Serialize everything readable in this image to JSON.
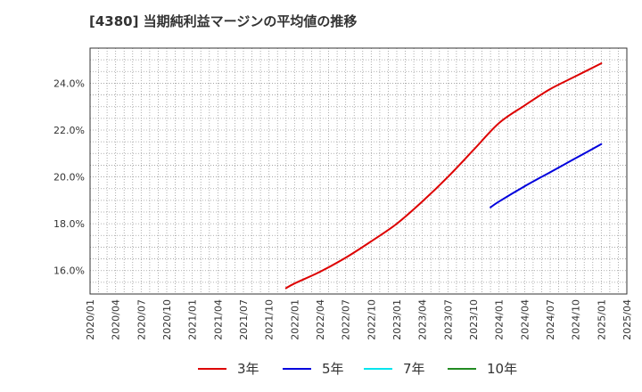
{
  "title": "[4380]  当期純利益マージンの平均値の推移",
  "chart_data": {
    "type": "line",
    "title": "[4380]  当期純利益マージンの平均値の推移",
    "xlabel": "",
    "ylabel": "",
    "ylim": [
      15.0,
      25.5
    ],
    "yticks": [
      16.0,
      18.0,
      20.0,
      22.0,
      24.0
    ],
    "ytick_labels": [
      "16.0%",
      "18.0%",
      "20.0%",
      "22.0%",
      "24.0%"
    ],
    "categories": [
      "2020/01",
      "2020/04",
      "2020/07",
      "2020/10",
      "2021/01",
      "2021/04",
      "2021/07",
      "2021/10",
      "2022/01",
      "2022/04",
      "2022/07",
      "2022/10",
      "2023/01",
      "2023/04",
      "2023/07",
      "2023/10",
      "2024/01",
      "2024/04",
      "2024/07",
      "2024/10",
      "2025/01",
      "2025/04"
    ],
    "grid": true,
    "legend_position": "bottom",
    "series": [
      {
        "name": "3年",
        "color": "#dd0000",
        "x": [
          "2021/12",
          "2022/01",
          "2022/04",
          "2022/07",
          "2022/10",
          "2023/01",
          "2023/04",
          "2023/07",
          "2023/10",
          "2024/01",
          "2024/04",
          "2024/07",
          "2024/10",
          "2025/01"
        ],
        "values": [
          15.25,
          15.45,
          15.95,
          16.55,
          17.25,
          18.0,
          18.95,
          20.0,
          21.15,
          22.3,
          23.05,
          23.75,
          24.3,
          24.85
        ]
      },
      {
        "name": "5年",
        "color": "#0000dd",
        "x": [
          "2023/12",
          "2024/01",
          "2024/04",
          "2024/07",
          "2024/10",
          "2025/01"
        ],
        "values": [
          18.7,
          18.95,
          19.6,
          20.2,
          20.8,
          21.4
        ]
      },
      {
        "name": "7年",
        "color": "#00e5ee",
        "x": [],
        "values": []
      },
      {
        "name": "10年",
        "color": "#228b22",
        "x": [],
        "values": []
      }
    ]
  }
}
